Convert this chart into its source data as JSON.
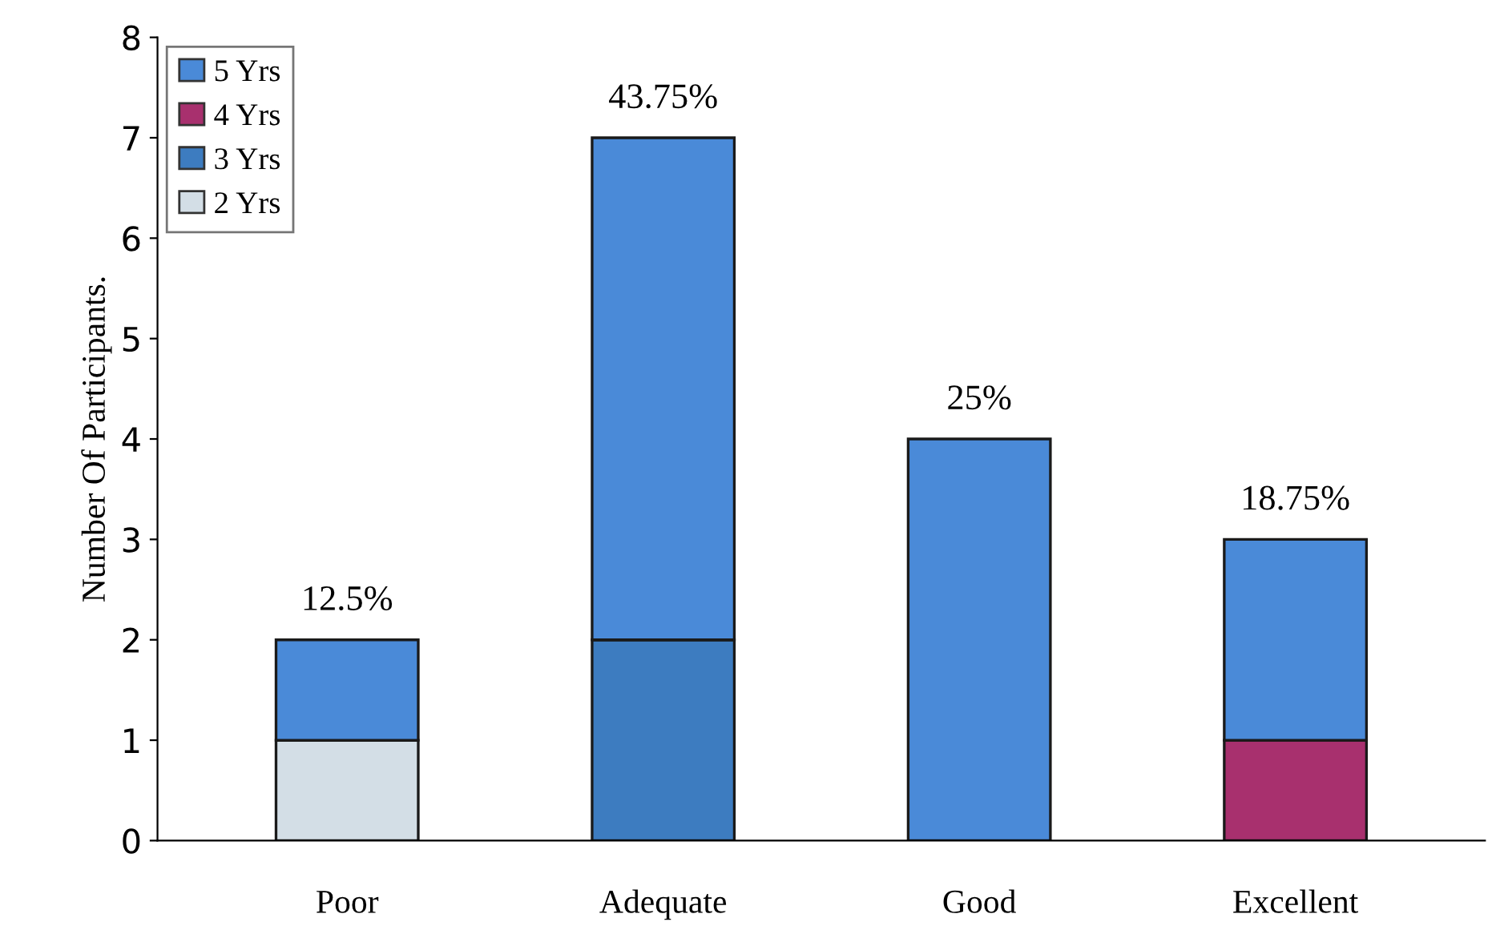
{
  "chart_data": {
    "type": "bar",
    "stacked": true,
    "ylabel": "Number Of Participants.",
    "categories": [
      "Poor",
      "Adequate",
      "Good",
      "Excellent"
    ],
    "series": [
      {
        "name": "2 Yrs",
        "color": "#d3dee6",
        "values": [
          1,
          0,
          0,
          0
        ]
      },
      {
        "name": "3 Yrs",
        "color": "#3d7cc0",
        "values": [
          0,
          2,
          0,
          0
        ]
      },
      {
        "name": "4 Yrs",
        "color": "#a8306e",
        "values": [
          0,
          0,
          0,
          1
        ]
      },
      {
        "name": "5 Yrs",
        "color": "#4a8ad8",
        "values": [
          1,
          5,
          4,
          2
        ]
      }
    ],
    "annotations": [
      {
        "text": "12.5%",
        "x": "Poor",
        "y": 2
      },
      {
        "text": "43.75%",
        "x": "Adequate",
        "y": 7
      },
      {
        "text": "25%",
        "x": "Good",
        "y": 4
      },
      {
        "text": "18.75%",
        "x": "Excellent",
        "y": 3
      }
    ],
    "ylim": [
      0,
      8
    ],
    "yticks": [
      0,
      1,
      2,
      3,
      4,
      5,
      6,
      7,
      8
    ],
    "grid": false,
    "legend": "top left"
  }
}
